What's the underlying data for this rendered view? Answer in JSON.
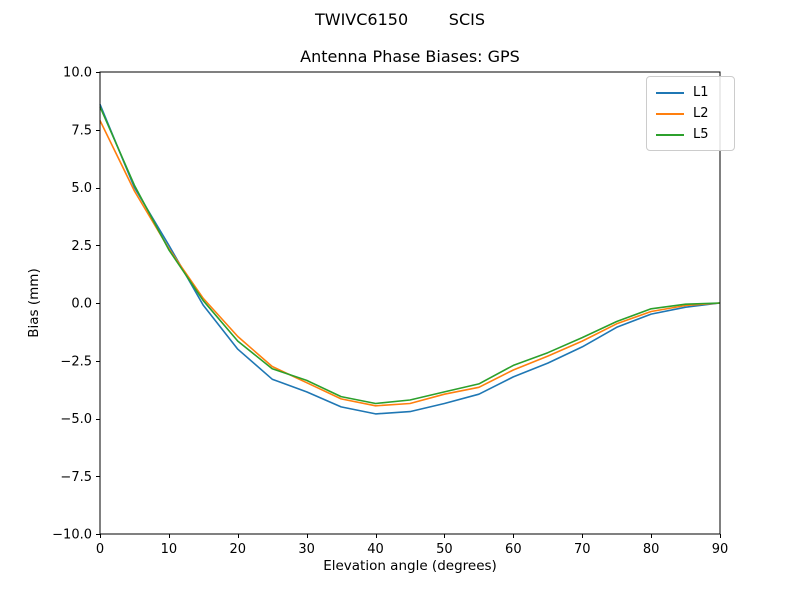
{
  "chart": {
    "suptitle": "TWIVC6150        SCIS",
    "title": "Antenna Phase Biases: GPS",
    "xlabel": "Elevation angle (degrees)",
    "ylabel": "Bias (mm)"
  },
  "chart_data": {
    "type": "line",
    "suptitle": "TWIVC6150        SCIS",
    "title": "Antenna Phase Biases: GPS",
    "xlabel": "Elevation angle (degrees)",
    "ylabel": "Bias (mm)",
    "xlim": [
      0,
      90
    ],
    "ylim": [
      -10,
      10
    ],
    "xticks": [
      0,
      10,
      20,
      30,
      40,
      50,
      60,
      70,
      80,
      90
    ],
    "yticks": [
      10.0,
      7.5,
      5.0,
      2.5,
      0.0,
      -2.5,
      -5.0,
      -7.5,
      -10.0
    ],
    "ytick_labels": [
      "10.0",
      "7.5",
      "5.0",
      "2.5",
      "0.0",
      "−2.5",
      "−5.0",
      "−7.5",
      "−10.0"
    ],
    "grid": false,
    "legend_position": "upper right",
    "axis_color": "#000000",
    "x": [
      0,
      5,
      10,
      15,
      20,
      25,
      30,
      35,
      40,
      45,
      50,
      55,
      60,
      65,
      70,
      75,
      80,
      85,
      90
    ],
    "series": [
      {
        "name": "L1",
        "color": "#1f77b4",
        "values": [
          8.6,
          5.0,
          2.5,
          -0.1,
          -2.0,
          -3.3,
          -3.85,
          -4.5,
          -4.8,
          -4.7,
          -4.35,
          -3.95,
          -3.2,
          -2.6,
          -1.9,
          -1.05,
          -0.48,
          -0.18,
          0.0
        ]
      },
      {
        "name": "L2",
        "color": "#ff7f0e",
        "values": [
          7.9,
          4.85,
          2.35,
          0.2,
          -1.45,
          -2.75,
          -3.45,
          -4.15,
          -4.45,
          -4.35,
          -3.95,
          -3.65,
          -2.9,
          -2.3,
          -1.65,
          -0.9,
          -0.37,
          -0.11,
          0.0
        ]
      },
      {
        "name": "L5",
        "color": "#2ca02c",
        "values": [
          8.5,
          5.1,
          2.3,
          0.1,
          -1.65,
          -2.85,
          -3.35,
          -4.05,
          -4.35,
          -4.2,
          -3.85,
          -3.5,
          -2.7,
          -2.15,
          -1.5,
          -0.8,
          -0.25,
          -0.05,
          0.0
        ]
      }
    ]
  }
}
